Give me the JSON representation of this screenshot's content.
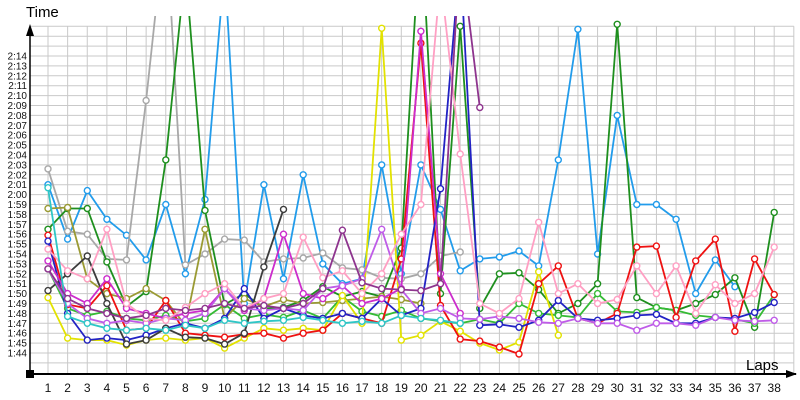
{
  "titles": {
    "y_axis": "Time",
    "x_axis": "Laps"
  },
  "style": {
    "grid_color": "#c9c9c9",
    "axis_color": "#000000",
    "label_color": "#111111",
    "background": "#ffffff"
  },
  "chart_data": {
    "type": "line",
    "title": "",
    "xlabel": "Laps",
    "ylabel": "Time",
    "x": [
      1,
      2,
      3,
      4,
      5,
      6,
      7,
      8,
      9,
      10,
      11,
      12,
      13,
      14,
      15,
      16,
      17,
      18,
      19,
      20,
      21,
      22,
      23,
      24,
      25,
      26,
      27,
      28,
      29,
      30,
      31,
      32,
      33,
      34,
      35,
      36,
      37,
      38
    ],
    "x_tick_labels": [
      "1",
      "2",
      "3",
      "4",
      "5",
      "6",
      "7",
      "8",
      "9",
      "10",
      "11",
      "12",
      "13",
      "14",
      "15",
      "16",
      "17",
      "18",
      "19",
      "20",
      "21",
      "22",
      "23",
      "24",
      "25",
      "26",
      "27",
      "28",
      "29",
      "30",
      "31",
      "32",
      "33",
      "34",
      "35",
      "36",
      "37",
      "38"
    ],
    "y_tick_labels": [
      "1:44",
      "1:45",
      "1:46",
      "1:47",
      "1:48",
      "1:49",
      "1:50",
      "1:51",
      "1:52",
      "1:53",
      "1:54",
      "1:55",
      "1:56",
      "1:57",
      "1:58",
      "1:59",
      "2:00",
      "2:01",
      "2:02",
      "2:03",
      "2:04",
      "2:05",
      "2:06",
      "2:07",
      "2:08",
      "2:09",
      "2:10",
      "2:11",
      "2:12",
      "2:13",
      "2:14"
    ],
    "y_units": "seconds (lap time, 1:44 = 104 s)",
    "y_label_range_seconds": [
      104,
      134
    ],
    "grid": true,
    "legend": "none",
    "marker": "open-circle",
    "series": [
      {
        "name": "sky-blue",
        "color": "#229ceb",
        "values": [
          121,
          115.5,
          120.4,
          117.5,
          115.9,
          113.4,
          119,
          112,
          119.5,
          143,
          109,
          121,
          111.5,
          122,
          113,
          111,
          111.5,
          123,
          112,
          123,
          118.5,
          112.3,
          113.5,
          113.7,
          114.3,
          112.8,
          123.5,
          136.7,
          114,
          128,
          119,
          119,
          117.5,
          110,
          113.4,
          110.7,
          null,
          null
        ]
      },
      {
        "name": "gray",
        "color": "#a8a8a8",
        "values": [
          122.6,
          116.3,
          116,
          113.5,
          113.4,
          129.5,
          148,
          112.9,
          114,
          115.5,
          115.4,
          113.2,
          113.5,
          113.6,
          114.1,
          112.6,
          112.4,
          111.6,
          111.5,
          112,
          113.8,
          114.2,
          null,
          null,
          null,
          null,
          null,
          null,
          null,
          null,
          null,
          null,
          null,
          null,
          null,
          null,
          null,
          null
        ]
      },
      {
        "name": "dark-green",
        "color": "#1e8f1e",
        "values": [
          116.5,
          118.6,
          118.6,
          113.2,
          108.7,
          110.2,
          123.5,
          143,
          118.4,
          108.9,
          110,
          108.5,
          108.6,
          109.3,
          110.7,
          109.7,
          110.2,
          109.7,
          114.6,
          148,
          110,
          137,
          108.5,
          112,
          112.1,
          110.4,
          108,
          109,
          111,
          137.2,
          109.6,
          108.6,
          108.3,
          109,
          109.9,
          111.6,
          106.6,
          118.2
        ]
      },
      {
        "name": "bright-green",
        "color": "#35bb35",
        "values": [
          112.5,
          108.5,
          107.8,
          108.2,
          107.5,
          107.3,
          107.8,
          107.2,
          107.5,
          108.9,
          107.5,
          107.9,
          107.6,
          108.3,
          107.5,
          109.7,
          108.2,
          107.7,
          108.3,
          107.5,
          107.2,
          107,
          107.4,
          107,
          109,
          108,
          107.8,
          107.6,
          110,
          108.2,
          108.1,
          108.6,
          108.3,
          107.8,
          107.6,
          107.4,
          107,
          109.9
        ]
      },
      {
        "name": "olive",
        "color": "#9a9a33",
        "values": [
          118.6,
          118.7,
          111.5,
          110,
          109.5,
          110.5,
          109.3,
          106.8,
          116.5,
          107.5,
          109.5,
          108.7,
          109.4,
          109,
          109.1,
          109.3,
          109.5,
          109.7,
          109.4,
          109,
          null,
          null,
          null,
          null,
          null,
          null,
          null,
          null,
          null,
          null,
          null,
          null,
          null,
          null,
          null,
          null,
          null,
          null
        ]
      },
      {
        "name": "yellow",
        "color": "#e2e200",
        "values": [
          109.6,
          105.5,
          105.3,
          105.3,
          104.8,
          105.3,
          105.5,
          105.3,
          105.5,
          104.5,
          105.5,
          106.5,
          106.3,
          106.5,
          106.3,
          109.8,
          107,
          136.8,
          105.3,
          105.8,
          107.2,
          106.2,
          105,
          104.3,
          105.1,
          112.2,
          105.8,
          null,
          null,
          null,
          null,
          null,
          null,
          null,
          null,
          null,
          null,
          null
        ]
      },
      {
        "name": "red",
        "color": "#ee1111",
        "values": [
          115.9,
          108.9,
          108.5,
          110.8,
          106.3,
          106.5,
          109.3,
          106,
          105.8,
          105.6,
          105.9,
          106,
          105.5,
          106,
          106.3,
          108,
          107.5,
          107,
          113.5,
          135.3,
          108.8,
          105.4,
          105.2,
          104.6,
          103.9,
          111,
          112.8,
          107.5,
          107,
          108,
          114.7,
          114.8,
          107.6,
          113.3,
          115.5,
          106.2,
          113.5,
          109.9
        ]
      },
      {
        "name": "navy-blue",
        "color": "#2222c4",
        "values": [
          115.3,
          108,
          105.3,
          105.5,
          105.3,
          105.8,
          106.5,
          107,
          106.5,
          107.5,
          110.5,
          107.5,
          108.5,
          107.8,
          107.5,
          108,
          107.5,
          109.5,
          107.8,
          108.5,
          120.6,
          144,
          106.8,
          106.9,
          106.6,
          107.3,
          109.3,
          107.5,
          107.3,
          107.5,
          107.8,
          107.9,
          107,
          107,
          107.6,
          107.5,
          108.1,
          109.1
        ]
      },
      {
        "name": "black",
        "color": "#3c3c3c",
        "values": [
          110.3,
          112,
          113.8,
          109,
          104.9,
          105.3,
          106.5,
          105.6,
          105.5,
          104.9,
          106,
          112.7,
          118.5,
          null,
          null,
          null,
          null,
          null,
          null,
          null,
          null,
          null,
          null,
          null,
          null,
          null,
          null,
          null,
          null,
          null,
          null,
          null,
          null,
          null,
          null,
          null,
          null,
          null
        ]
      },
      {
        "name": "magenta",
        "color": "#cc2ccc",
        "values": [
          113.3,
          110,
          109,
          111.5,
          108.5,
          108,
          107.5,
          108,
          108.3,
          110.5,
          108.3,
          109.5,
          116,
          110,
          109.5,
          110.8,
          109,
          109.5,
          110.5,
          136.5,
          112,
          108,
          null,
          null,
          null,
          null,
          null,
          null,
          null,
          null,
          null,
          null,
          null,
          null,
          null,
          null,
          null,
          null
        ]
      },
      {
        "name": "violet",
        "color": "#bf5ce8",
        "values": [
          112.5,
          109,
          107.5,
          107,
          107.3,
          107,
          107.5,
          107.3,
          108,
          110.5,
          108.5,
          108.3,
          108.5,
          108.3,
          110.5,
          110.8,
          111.5,
          116.5,
          110.4,
          108,
          108.5,
          107.5,
          107.4,
          107.7,
          107.5,
          107.1,
          107,
          107.5,
          107,
          107,
          106.3,
          107,
          107,
          106.8,
          107.6,
          107.3,
          107.2,
          107.3
        ]
      },
      {
        "name": "pink",
        "color": "#ff9fc3",
        "values": [
          114.5,
          112.3,
          111.5,
          116.5,
          109,
          107.5,
          107.3,
          108.6,
          110,
          111,
          108.5,
          109.5,
          110,
          115.7,
          111.6,
          112.3,
          110,
          112,
          116,
          119,
          142,
          124.1,
          109,
          108,
          109.5,
          117.2,
          110,
          111,
          109,
          109.4,
          112.8,
          110,
          112.8,
          108,
          110.9,
          109,
          110,
          114.7
        ]
      },
      {
        "name": "cyan",
        "color": "#2fc6c6",
        "values": [
          120.7,
          107.7,
          107,
          106.5,
          106.3,
          106.5,
          106.3,
          106.8,
          106.5,
          107.3,
          107,
          107.2,
          107.3,
          107.6,
          107.3,
          107,
          107.2,
          107,
          107.8,
          107.5,
          107.3,
          107,
          null,
          null,
          null,
          null,
          null,
          null,
          null,
          null,
          null,
          null,
          null,
          null,
          null,
          null,
          null,
          null
        ]
      },
      {
        "name": "purple",
        "color": "#8e348e",
        "values": [
          112.5,
          109.5,
          108.5,
          108,
          107.5,
          107.8,
          108.5,
          108.3,
          108.5,
          109,
          108.5,
          108.8,
          108.5,
          109,
          110.5,
          116.4,
          111.1,
          110.5,
          110.4,
          110.3,
          111,
          145,
          128.8,
          null,
          null,
          null,
          null,
          null,
          null,
          null,
          null,
          null,
          null,
          null,
          null,
          null,
          null,
          null
        ]
      }
    ]
  }
}
